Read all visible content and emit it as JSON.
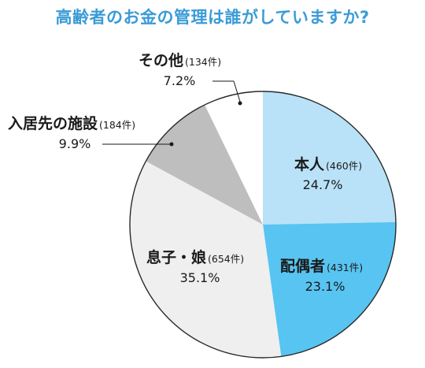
{
  "colors": {
    "title": "#3a9bd6",
    "outline": "#2a2a2a",
    "text": "#1a1a1a"
  },
  "chart_data": {
    "type": "pie",
    "title": "高齢者のお金の管理は誰がしていますか?",
    "start": "12 o'clock, clockwise",
    "slices": [
      {
        "label": "本人",
        "count": "(460件)",
        "percent_label": "24.7%",
        "value": 24.7,
        "color": "#b9e2f8"
      },
      {
        "label": "配偶者",
        "count": "(431件)",
        "percent_label": "23.1%",
        "value": 23.1,
        "color": "#58c4f1"
      },
      {
        "label": "息子・娘",
        "count": "(654件)",
        "percent_label": "35.1%",
        "value": 35.1,
        "color": "#efefef"
      },
      {
        "label": "入居先の施設",
        "count": "(184件)",
        "percent_label": "9.9%",
        "value": 9.9,
        "color": "#bebebe"
      },
      {
        "label": "その他",
        "count": "(134件)",
        "percent_label": "7.2%",
        "value": 7.2,
        "color": "#ffffff"
      }
    ]
  }
}
